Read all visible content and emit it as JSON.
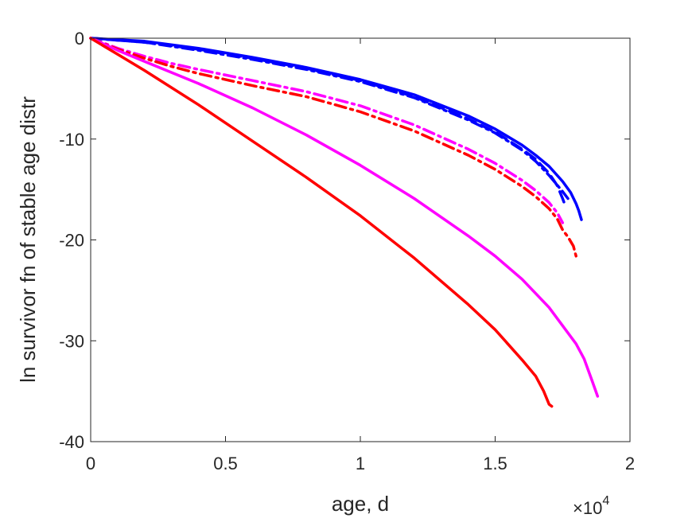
{
  "chart_data": {
    "type": "line",
    "title": "",
    "xlabel": "age, d",
    "ylabel": "ln survivor fn of stable age distr",
    "x_multiplier_base": "×10",
    "x_multiplier_exp": "4",
    "xlim": [
      0,
      20000
    ],
    "ylim": [
      -40,
      0
    ],
    "xticks": [
      0,
      5000,
      10000,
      15000,
      20000
    ],
    "xtick_labels": [
      "0",
      "0.5",
      "1",
      "1.5",
      "2"
    ],
    "yticks": [
      0,
      -10,
      -20,
      -30,
      -40
    ],
    "ytick_labels": [
      "0",
      "-10",
      "-20",
      "-30",
      "-40"
    ],
    "grid": false,
    "legend": "none",
    "series": [
      {
        "color": "#0000ff",
        "style": "solid",
        "x": [
          0,
          2000,
          4000,
          6000,
          8000,
          10000,
          12000,
          14000,
          15000,
          16000,
          16500,
          17000,
          17500,
          17800,
          18000,
          18100,
          18200
        ],
        "y": [
          0,
          -0.3,
          -1.0,
          -1.9,
          -2.9,
          -4.1,
          -5.6,
          -7.7,
          -9.0,
          -10.6,
          -11.6,
          -12.7,
          -14.2,
          -15.3,
          -16.4,
          -17.1,
          -18.0
        ]
      },
      {
        "color": "#0000ff",
        "style": "dashed",
        "x": [
          0,
          2000,
          4000,
          6000,
          8000,
          10000,
          12000,
          14000,
          15000,
          16000,
          16500,
          17000,
          17300,
          17500,
          17600
        ],
        "y": [
          0,
          -0.4,
          -1.1,
          -2.0,
          -3.0,
          -4.2,
          -5.8,
          -8.0,
          -9.3,
          -11.0,
          -12.0,
          -13.4,
          -14.6,
          -15.9,
          -16.6
        ]
      },
      {
        "color": "#0000ff",
        "style": "dashdot",
        "x": [
          0,
          2000,
          4000,
          6000,
          8000,
          10000,
          12000,
          14000,
          15000,
          16000,
          16500,
          17000,
          17500,
          17700
        ],
        "y": [
          0,
          -0.4,
          -1.2,
          -2.1,
          -3.1,
          -4.3,
          -5.9,
          -8.1,
          -9.4,
          -11.1,
          -12.2,
          -13.6,
          -15.2,
          -15.9
        ]
      },
      {
        "color": "#ff00ff",
        "style": "dashdot",
        "x": [
          0,
          1000,
          2000,
          3000,
          4000,
          6000,
          8000,
          10000,
          12000,
          14000,
          15000,
          16000,
          16500,
          17000,
          17300,
          17500
        ],
        "y": [
          0,
          -1.0,
          -1.8,
          -2.5,
          -3.1,
          -4.2,
          -5.3,
          -6.7,
          -8.6,
          -11.0,
          -12.4,
          -14.1,
          -15.1,
          -16.3,
          -17.3,
          -18.3
        ]
      },
      {
        "color": "#ff0000",
        "style": "dashdot",
        "x": [
          0,
          1000,
          2000,
          3000,
          4000,
          6000,
          8000,
          10000,
          12000,
          14000,
          15000,
          16000,
          16500,
          17000,
          17300,
          17500,
          17700,
          17900,
          18000
        ],
        "y": [
          0,
          -1.1,
          -2.0,
          -2.8,
          -3.5,
          -4.7,
          -5.8,
          -7.3,
          -9.2,
          -11.6,
          -13.0,
          -14.7,
          -15.7,
          -16.9,
          -17.9,
          -19.0,
          -19.7,
          -20.6,
          -21.6
        ]
      },
      {
        "color": "#ff00ff",
        "style": "solid",
        "x": [
          0,
          1000,
          2000,
          4000,
          6000,
          8000,
          10000,
          12000,
          14000,
          15000,
          16000,
          17000,
          18000,
          18300,
          18600,
          18800
        ],
        "y": [
          0,
          -1.2,
          -2.3,
          -4.5,
          -6.9,
          -9.6,
          -12.6,
          -15.9,
          -19.6,
          -21.6,
          -23.9,
          -26.7,
          -30.3,
          -31.8,
          -34.0,
          -35.5
        ]
      },
      {
        "color": "#ff0000",
        "style": "solid",
        "x": [
          0,
          1000,
          2000,
          4000,
          6000,
          8000,
          10000,
          12000,
          14000,
          15000,
          16000,
          16500,
          16800,
          17000,
          17100
        ],
        "y": [
          0,
          -1.6,
          -3.2,
          -6.6,
          -10.2,
          -13.8,
          -17.6,
          -21.8,
          -26.4,
          -28.9,
          -31.9,
          -33.5,
          -35.0,
          -36.3,
          -36.5
        ]
      }
    ]
  }
}
